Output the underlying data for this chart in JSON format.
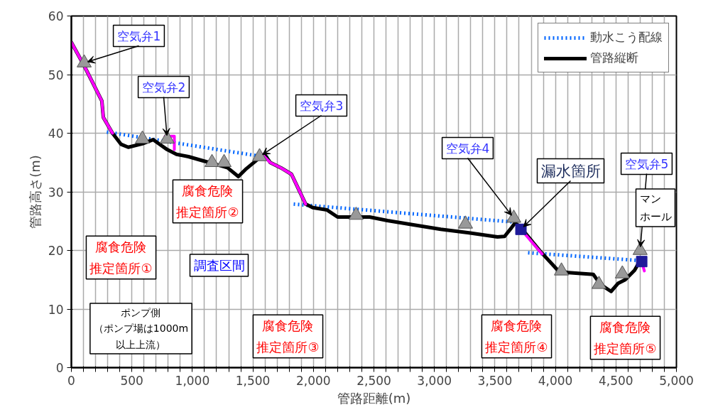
{
  "chart_data": {
    "type": "line",
    "xlabel": "管路距離(m)",
    "ylabel": "管路高さ(m)",
    "xlim": [
      0,
      5000
    ],
    "ylim": [
      0,
      60
    ],
    "xticks": [
      0,
      {
        "value": 100,
        "label": null
      },
      {
        "value": 200,
        "label": null
      },
      {
        "value": 300,
        "label": null
      },
      {
        "value": 400,
        "label": null
      },
      500,
      {
        "value": 600,
        "label": null
      },
      {
        "value": 700,
        "label": null
      },
      {
        "value": 800,
        "label": null
      },
      {
        "value": 900,
        "label": null
      },
      {
        "value": 1000,
        "label": "1,000"
      },
      {
        "value": 1100,
        "label": null
      },
      {
        "value": 1200,
        "label": null
      },
      {
        "value": 1300,
        "label": null
      },
      {
        "value": 1400,
        "label": null
      },
      {
        "value": 1500,
        "label": "1,500"
      },
      {
        "value": 1600,
        "label": null
      },
      {
        "value": 1700,
        "label": null
      },
      {
        "value": 1800,
        "label": null
      },
      {
        "value": 1900,
        "label": null
      },
      {
        "value": 2000,
        "label": "2,000"
      },
      {
        "value": 2100,
        "label": null
      },
      {
        "value": 2200,
        "label": null
      },
      {
        "value": 2300,
        "label": null
      },
      {
        "value": 2400,
        "label": null
      },
      {
        "value": 2500,
        "label": "2,500"
      },
      {
        "value": 2600,
        "label": null
      },
      {
        "value": 2700,
        "label": null
      },
      {
        "value": 2800,
        "label": null
      },
      {
        "value": 2900,
        "label": null
      },
      {
        "value": 3000,
        "label": "3,000"
      },
      {
        "value": 3100,
        "label": null
      },
      {
        "value": 3200,
        "label": null
      },
      {
        "value": 3300,
        "label": null
      },
      {
        "value": 3400,
        "label": null
      },
      {
        "value": 3500,
        "label": "3,500"
      },
      {
        "value": 3600,
        "label": null
      },
      {
        "value": 3700,
        "label": null
      },
      {
        "value": 3800,
        "label": null
      },
      {
        "value": 3900,
        "label": null
      },
      {
        "value": 4000,
        "label": "4,000"
      },
      {
        "value": 4100,
        "label": null
      },
      {
        "value": 4200,
        "label": null
      },
      {
        "value": 4300,
        "label": null
      },
      {
        "value": 4400,
        "label": null
      },
      {
        "value": 4500,
        "label": "4,500"
      },
      {
        "value": 4600,
        "label": null
      },
      {
        "value": 4700,
        "label": null
      },
      {
        "value": 4800,
        "label": null
      },
      {
        "value": 4900,
        "label": null
      },
      {
        "value": 5000,
        "label": "5,000"
      }
    ],
    "yticks": [
      0,
      10,
      20,
      30,
      40,
      50,
      60
    ],
    "grid": true,
    "legend": "top right",
    "series": [
      {
        "name": "動水こう配線",
        "type": "line",
        "line_style": "dotted",
        "color": "#0066ff",
        "x": [
          293,
          1643,
          null,
          1837,
          3680,
          null,
          3774,
          4677
        ],
        "values": [
          40.2,
          35.8,
          null,
          27.9,
          24.8,
          null,
          19.6,
          18.3
        ]
      },
      {
        "name": "管路縦断",
        "type": "line",
        "line_style": "solid",
        "color": "#000000",
        "x": [
          0,
          106,
          252,
          264,
          340,
          411,
          470,
          587,
          675,
          792,
          869,
          968,
          1086,
          1174,
          1291,
          1380,
          1438,
          1555,
          1596,
          1643,
          1731,
          1819,
          1936,
          1995,
          2113,
          2200,
          2347,
          2465,
          2612,
          2817,
          3052,
          3286,
          3521,
          3580,
          3638,
          3667,
          3726,
          3873,
          4020,
          4108,
          4313,
          4372,
          4460,
          4519,
          4577,
          4654,
          4695
        ],
        "values": [
          55.5,
          51.5,
          45.5,
          42.7,
          40.0,
          38.1,
          37.6,
          38.2,
          38.9,
          37.2,
          36.4,
          36.0,
          35.3,
          34.8,
          34.1,
          32.6,
          33.8,
          35.8,
          36.4,
          35.0,
          34.1,
          33.0,
          27.9,
          27.3,
          26.9,
          25.7,
          25.7,
          25.7,
          25.1,
          24.4,
          23.6,
          23.0,
          22.3,
          22.4,
          23.9,
          24.7,
          23.6,
          19.9,
          16.6,
          16.2,
          15.9,
          14.2,
          13.0,
          14.4,
          15.0,
          16.6,
          18.1
        ]
      },
      {
        "type": "line",
        "line_style": "solid",
        "color": "#ff00ff",
        "x": [
          0,
          106,
          252,
          264,
          340,
          null,
          775,
          851,
          851,
          null,
          1570,
          1643,
          1731,
          1819,
          1936,
          null,
          3715,
          3890,
          null,
          4713,
          4735
        ],
        "values": [
          55.5,
          51.5,
          45.5,
          42.7,
          40.0,
          null,
          39.5,
          39.5,
          37.2,
          null,
          36.5,
          35.0,
          34.1,
          33.0,
          27.9,
          null,
          23.6,
          19.4,
          null,
          18.1,
          16.5
        ]
      },
      {
        "type": "scatter",
        "marker": "triangle",
        "color": "#999999",
        "x": [
          106,
          587,
          792,
          1162,
          1262,
          1555,
          2353,
          3257,
          3656,
          4050,
          4360,
          4553,
          4700
        ],
        "values": [
          52,
          39,
          39,
          35,
          35,
          36,
          26,
          24.5,
          25.5,
          16.5,
          14.2,
          16,
          20
        ]
      },
      {
        "type": "scatter",
        "marker": "square",
        "color": "#1f1a99",
        "x": [
          3715,
          4713
        ],
        "values": [
          23.6,
          18.1
        ]
      }
    ],
    "annotations": [
      {
        "text": "空気弁1",
        "x": 106,
        "y": 52
      },
      {
        "text": "空気弁2",
        "x": 792,
        "y": 39
      },
      {
        "text": "空気弁3",
        "x": 1555,
        "y": 36
      },
      {
        "text": "空気弁4",
        "x": 3656,
        "y": 25.5
      },
      {
        "text": "空気弁5",
        "x": 4700,
        "y": 20
      },
      {
        "text": "漏水箇所",
        "x": 3715,
        "y": 23.6
      },
      "腐食危険推定箇所①",
      "腐食危険推定箇所②",
      "腐食危険推定箇所③",
      "腐食危険推定箇所④",
      "腐食危険推定箇所⑤",
      "調査区間",
      "ポンプ側（ポンプ場は1000m以上上流）",
      "マンホール"
    ]
  }
}
